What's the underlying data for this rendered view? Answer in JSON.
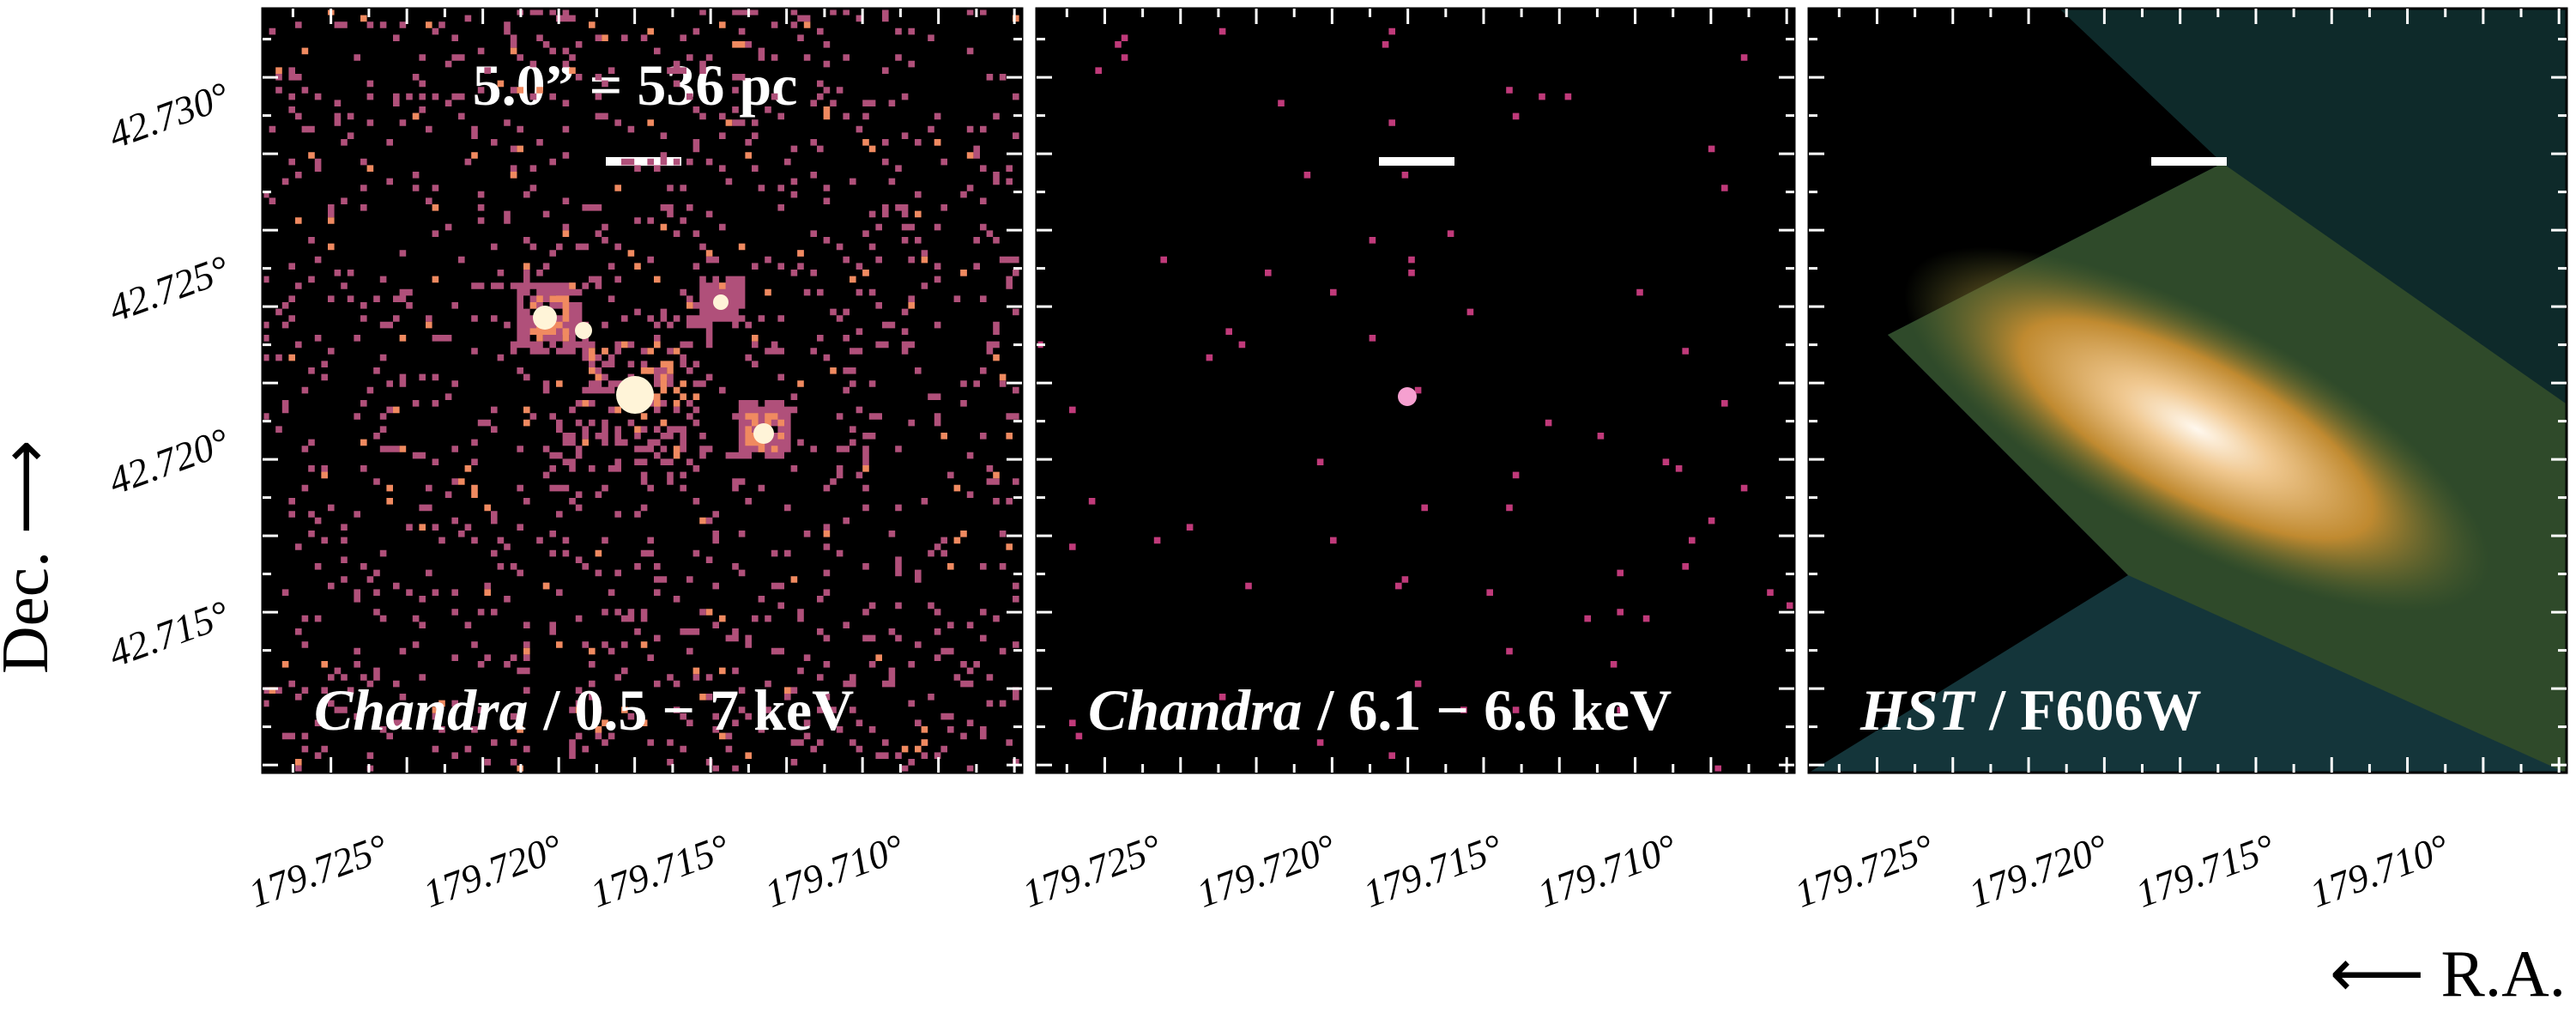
{
  "figure": {
    "scale_label": "5.0” = 536 pc",
    "panels": [
      {
        "instrument": "Chandra",
        "band": "/ 0.5 − 7 keV"
      },
      {
        "instrument": "Chandra",
        "band": "/ 6.1 − 6.6 keV"
      },
      {
        "instrument": "HST",
        "band": "/ F606W"
      }
    ],
    "ra_ticks": [
      "179.725°",
      "179.720°",
      "179.715°",
      "179.710°"
    ],
    "dec_ticks": [
      "42.730°",
      "42.725°",
      "42.720°",
      "42.715°"
    ],
    "xlabel": "⟵ R.A.",
    "ylabel": "Dec. ⟶"
  }
}
